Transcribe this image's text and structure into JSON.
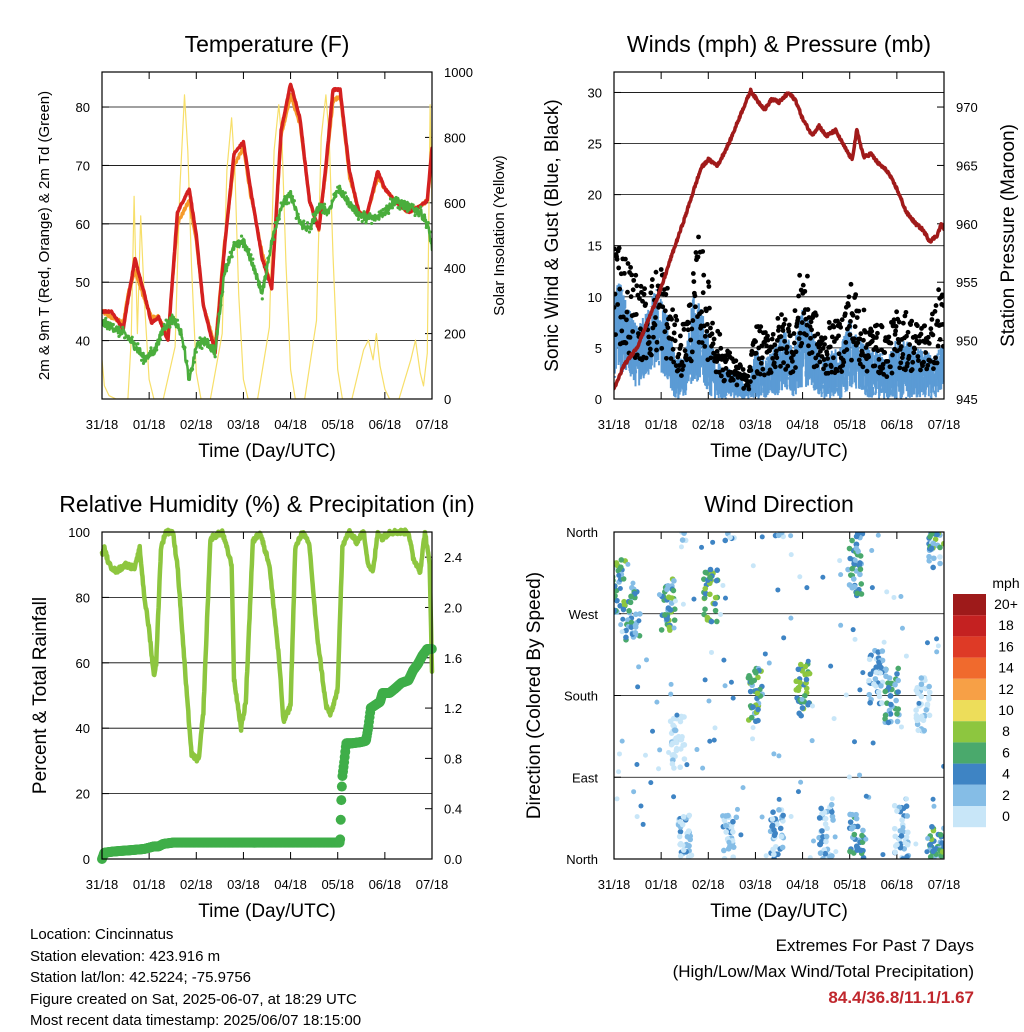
{
  "chart_data": [
    {
      "type": "line",
      "title": "Temperature (F)",
      "xlabel": "Time (Day/UTC)",
      "ylabel": "2m & 9m T (Red, Orange) & 2m Td (Green)",
      "ylabel_right": "Solar Insolation (Yellow)",
      "x_ticks": [
        "31/18",
        "01/18",
        "02/18",
        "03/18",
        "04/18",
        "05/18",
        "06/18",
        "07/18"
      ],
      "xlim": [
        0,
        7
      ],
      "ylim": [
        30,
        86
      ],
      "y_ticks": [
        40,
        50,
        60,
        70,
        80
      ],
      "ylim_right": [
        0,
        1000
      ],
      "y_ticks_right": [
        0,
        200,
        400,
        600,
        800,
        1000
      ],
      "grid": true,
      "colors": {
        "t2m": "#d42020",
        "t9m": "#f59b2b",
        "td": "#4aad3c",
        "solar": "#f7df6a"
      },
      "series": [
        {
          "key": "t2m",
          "x": [
            0,
            0.2,
            0.45,
            0.55,
            0.7,
            0.9,
            1.05,
            1.2,
            1.4,
            1.6,
            1.85,
            2.0,
            2.15,
            2.4,
            2.6,
            2.8,
            3.0,
            3.15,
            3.4,
            3.6,
            3.8,
            4.0,
            4.2,
            4.4,
            4.6,
            4.75,
            4.9,
            5.05,
            5.25,
            5.45,
            5.6,
            5.85,
            6.0,
            6.2,
            6.5,
            6.75,
            6.9,
            7.0
          ],
          "values": [
            45,
            45,
            42,
            47,
            54,
            48,
            43,
            44,
            40,
            62,
            66,
            58,
            46,
            38,
            56,
            72,
            74,
            66,
            54,
            49,
            76,
            84,
            78,
            64,
            59,
            70,
            83,
            83,
            69,
            62,
            61,
            69,
            66,
            64,
            62,
            63,
            64,
            73
          ]
        },
        {
          "key": "t9m",
          "x": [
            0,
            0.2,
            0.45,
            0.55,
            0.7,
            0.9,
            1.05,
            1.2,
            1.4,
            1.6,
            1.85,
            2.0,
            2.15,
            2.4,
            2.6,
            2.8,
            3.0,
            3.15,
            3.4,
            3.6,
            3.8,
            4.0,
            4.2,
            4.4,
            4.6,
            4.75,
            4.9,
            5.05,
            5.25,
            5.45,
            5.6,
            5.85,
            6.0,
            6.2,
            6.5,
            6.75,
            6.9,
            7.0
          ],
          "values": [
            45,
            44,
            43,
            48,
            52,
            47,
            44,
            44,
            41,
            60,
            64,
            57,
            46,
            39,
            57,
            70,
            73,
            65,
            55,
            49,
            75,
            82,
            77,
            64,
            59,
            69,
            81,
            82,
            68,
            62,
            61,
            68,
            66,
            64,
            62,
            63,
            64,
            71
          ]
        },
        {
          "key": "td",
          "x": [
            0,
            0.3,
            0.5,
            0.7,
            0.9,
            1.1,
            1.3,
            1.5,
            1.7,
            1.85,
            2.0,
            2.2,
            2.4,
            2.6,
            2.8,
            3.0,
            3.2,
            3.4,
            3.6,
            3.8,
            4.0,
            4.2,
            4.4,
            4.6,
            4.8,
            5.0,
            5.2,
            5.4,
            5.6,
            5.8,
            6.0,
            6.2,
            6.5,
            6.75,
            6.9,
            7.0
          ],
          "values": [
            43,
            42,
            41,
            39,
            37,
            38,
            42,
            44,
            41,
            33,
            39,
            40,
            38,
            52,
            56,
            57,
            53,
            48,
            57,
            63,
            65,
            60,
            59,
            63,
            62,
            66,
            64,
            62,
            61,
            61,
            62,
            64,
            63,
            62,
            60,
            56
          ]
        },
        {
          "key": "solar",
          "x": [
            0,
            0.05,
            0.15,
            0.3,
            0.55,
            0.62,
            0.68,
            0.75,
            0.82,
            0.9,
            1.0,
            1.1,
            1.3,
            1.55,
            1.65,
            1.75,
            1.82,
            1.9,
            2.0,
            2.1,
            2.3,
            2.55,
            2.65,
            2.75,
            2.82,
            2.9,
            3.0,
            3.1,
            3.3,
            3.55,
            3.65,
            3.75,
            3.82,
            3.9,
            4.0,
            4.1,
            4.3,
            4.55,
            4.65,
            4.75,
            4.82,
            4.9,
            5.0,
            5.1,
            5.3,
            5.55,
            5.65,
            5.75,
            5.82,
            5.9,
            6.0,
            6.1,
            6.3,
            6.55,
            6.65,
            6.75,
            6.82,
            6.9,
            6.96,
            7.0
          ],
          "values": [
            120,
            40,
            10,
            0,
            0,
            180,
            620,
            200,
            560,
            300,
            60,
            0,
            0,
            160,
            640,
            930,
            760,
            400,
            80,
            0,
            0,
            200,
            700,
            860,
            700,
            320,
            60,
            0,
            0,
            220,
            760,
            900,
            780,
            420,
            90,
            0,
            0,
            240,
            800,
            930,
            800,
            440,
            90,
            0,
            0,
            150,
            180,
            120,
            200,
            100,
            30,
            0,
            0,
            120,
            180,
            80,
            40,
            140,
            900,
            600
          ]
        }
      ]
    },
    {
      "type": "scatter",
      "title": "Winds (mph) & Pressure (mb)",
      "xlabel": "Time (Day/UTC)",
      "ylabel": "Sonic Wind & Gust (Blue, Black)",
      "ylabel_right": "Station Pressure (Maroon)",
      "x_ticks": [
        "31/18",
        "01/18",
        "02/18",
        "03/18",
        "04/18",
        "05/18",
        "06/18",
        "07/18"
      ],
      "xlim": [
        0,
        7
      ],
      "ylim": [
        0,
        32
      ],
      "y_ticks": [
        0,
        5,
        10,
        15,
        20,
        25,
        30
      ],
      "ylim_right": [
        945,
        973
      ],
      "y_ticks_right": [
        945,
        950,
        955,
        960,
        965,
        970
      ],
      "grid": true,
      "colors": {
        "wind": "#5b9bd5",
        "gust": "#000000",
        "pressure": "#a01a1a"
      },
      "pressure": {
        "x": [
          0,
          0.2,
          0.5,
          0.8,
          1.0,
          1.2,
          1.5,
          1.7,
          1.85,
          2.0,
          2.2,
          2.45,
          2.7,
          2.9,
          3.05,
          3.2,
          3.35,
          3.5,
          3.7,
          3.85,
          4.0,
          4.2,
          4.35,
          4.5,
          4.7,
          4.9,
          5.05,
          5.15,
          5.3,
          5.45,
          5.6,
          5.8,
          6.0,
          6.2,
          6.4,
          6.55,
          6.7,
          6.85,
          6.95,
          7.0
        ],
        "values": [
          945.8,
          947.8,
          949.5,
          952.5,
          954.5,
          957,
          960.5,
          963,
          964.8,
          965.5,
          965,
          967,
          969.5,
          971.4,
          970.5,
          969.8,
          970.7,
          970.4,
          971.2,
          970.6,
          969,
          967.6,
          968.4,
          967.5,
          968,
          966.5,
          965.5,
          968,
          965.7,
          966,
          965.2,
          964.5,
          963,
          961,
          960,
          959.5,
          958.5,
          959,
          960,
          959.6
        ]
      },
      "wind_envelope": {
        "x": [
          0,
          0.1,
          0.3,
          0.5,
          0.7,
          0.9,
          1.1,
          1.3,
          1.5,
          1.7,
          1.9,
          2.1,
          2.3,
          2.5,
          2.7,
          2.85,
          3.0,
          3.2,
          3.4,
          3.6,
          3.8,
          4.0,
          4.2,
          4.4,
          4.6,
          4.8,
          5.0,
          5.2,
          5.4,
          5.6,
          5.8,
          6.0,
          6.2,
          6.4,
          6.6,
          6.8,
          7.0
        ],
        "high": [
          10,
          12,
          9,
          7,
          9,
          11,
          9,
          4,
          4,
          11,
          8,
          5,
          3,
          3,
          2,
          1,
          5,
          4,
          5,
          7,
          5,
          9,
          7,
          4,
          5,
          5,
          8,
          6,
          5,
          5,
          4,
          6,
          6,
          5,
          5,
          4,
          6
        ],
        "low": [
          1,
          3,
          2,
          1,
          2,
          3,
          2,
          0,
          0,
          2,
          1,
          0,
          0,
          0,
          0,
          0,
          0,
          0,
          0,
          1,
          0,
          1,
          1,
          0,
          0,
          0,
          1,
          1,
          0,
          0,
          0,
          0,
          0,
          0,
          0,
          0,
          1
        ]
      },
      "gust_profile": {
        "x": [
          0,
          0.15,
          0.4,
          0.6,
          0.8,
          1.0,
          1.2,
          1.4,
          1.6,
          1.8,
          1.95,
          2.1,
          2.3,
          2.5,
          2.7,
          2.85,
          3.0,
          3.2,
          3.4,
          3.6,
          3.8,
          4.0,
          4.2,
          4.4,
          4.6,
          4.8,
          5.0,
          5.2,
          5.4,
          5.6,
          5.8,
          6.0,
          6.2,
          6.4,
          6.6,
          6.8,
          7.0
        ],
        "values": [
          17,
          14,
          12,
          10,
          11,
          13,
          9,
          6,
          9,
          15,
          12,
          8,
          5,
          4,
          3,
          2,
          7,
          6,
          7,
          8,
          7,
          13,
          9,
          6,
          7,
          7,
          11,
          9,
          7,
          7,
          6,
          8,
          8,
          7,
          7,
          8,
          13
        ]
      }
    },
    {
      "type": "line",
      "title": "Relative Humidity (%) & Precipitation (in)",
      "xlabel": "Time (Day/UTC)",
      "ylabel": "Percent & Total Rainfall",
      "x_ticks": [
        "31/18",
        "01/18",
        "02/18",
        "03/18",
        "04/18",
        "05/18",
        "06/18",
        "07/18"
      ],
      "xlim": [
        0,
        7
      ],
      "ylim": [
        0,
        100
      ],
      "y_ticks": [
        0,
        20,
        40,
        60,
        80,
        100
      ],
      "ylim_right": [
        0,
        2.6
      ],
      "y_ticks_right": [
        "0.0",
        "0.4",
        "0.8",
        "1.2",
        "1.6",
        "2.0",
        "2.4"
      ],
      "grid": true,
      "colors": {
        "rh": "#8dc63f",
        "precip": "#3fae49"
      },
      "series": [
        {
          "key": "rh",
          "x": [
            0,
            0.05,
            0.15,
            0.3,
            0.5,
            0.7,
            0.8,
            0.9,
            1.0,
            1.1,
            1.15,
            1.25,
            1.35,
            1.5,
            1.6,
            1.8,
            1.9,
            2.05,
            2.15,
            2.3,
            2.55,
            2.75,
            2.8,
            2.95,
            3.05,
            3.2,
            3.35,
            3.55,
            3.75,
            3.85,
            4.0,
            4.1,
            4.25,
            4.4,
            4.55,
            4.75,
            4.85,
            5.0,
            5.1,
            5.25,
            5.4,
            5.55,
            5.65,
            5.75,
            5.85,
            5.95,
            6.1,
            6.3,
            6.5,
            6.6,
            6.75,
            6.85,
            6.95,
            7.0
          ],
          "values": [
            93,
            95,
            90,
            88,
            90,
            89,
            95,
            80,
            70,
            56,
            60,
            95,
            100,
            100,
            90,
            50,
            32,
            30,
            45,
            98,
            100,
            90,
            55,
            40,
            48,
            97,
            100,
            90,
            62,
            42,
            47,
            95,
            100,
            96,
            70,
            47,
            44,
            52,
            96,
            100,
            97,
            100,
            90,
            88,
            100,
            98,
            100,
            100,
            100,
            92,
            88,
            100,
            90,
            58
          ]
        },
        {
          "key": "precip",
          "x": [
            0,
            0.05,
            0.25,
            0.6,
            0.9,
            1.1,
            1.2,
            1.3,
            1.5,
            1.8,
            2.1,
            2.5,
            3.0,
            3.5,
            4.0,
            4.5,
            5.05,
            5.08,
            5.1,
            5.13,
            5.18,
            5.3,
            5.5,
            5.6,
            5.65,
            5.7,
            5.9,
            5.95,
            6.1,
            6.2,
            6.35,
            6.5,
            6.6,
            6.7,
            6.8,
            6.9,
            7.0
          ],
          "values": [
            0,
            0.05,
            0.06,
            0.07,
            0.08,
            0.1,
            0.1,
            0.12,
            0.13,
            0.13,
            0.13,
            0.13,
            0.13,
            0.13,
            0.13,
            0.13,
            0.13,
            0.52,
            0.66,
            0.75,
            0.92,
            0.92,
            0.93,
            0.94,
            1.05,
            1.2,
            1.25,
            1.32,
            1.32,
            1.35,
            1.4,
            1.42,
            1.5,
            1.55,
            1.62,
            1.67,
            1.67
          ]
        }
      ]
    },
    {
      "type": "scatter",
      "title": "Wind Direction",
      "xlabel": "Time (Day/UTC)",
      "ylabel": "Direction (Colored By Speed)",
      "x_ticks": [
        "31/18",
        "01/18",
        "02/18",
        "03/18",
        "04/18",
        "05/18",
        "06/18",
        "07/18"
      ],
      "xlim": [
        0,
        7
      ],
      "ylim": [
        0,
        360
      ],
      "y_ticks": [
        "North",
        "East",
        "South",
        "West",
        "North"
      ],
      "grid": true,
      "colorbar": {
        "title": "mph",
        "labels": [
          "20+",
          "18",
          "16",
          "14",
          "12",
          "10",
          "8",
          "6",
          "4",
          "2",
          "0"
        ],
        "colors": [
          "#9e1a1a",
          "#c42121",
          "#de3a26",
          "#f06a2d",
          "#f7a046",
          "#eddd5a",
          "#8dc63f",
          "#4aa96c",
          "#3e84c4",
          "#85bde6",
          "#c8e6f8"
        ]
      },
      "clusters": [
        {
          "x": 0.1,
          "dir": 300,
          "speed": 6
        },
        {
          "x": 0.4,
          "dir": 270,
          "speed": 5
        },
        {
          "x": 1.15,
          "dir": 280,
          "speed": 6
        },
        {
          "x": 2.05,
          "dir": 290,
          "speed": 7
        },
        {
          "x": 1.35,
          "dir": 130,
          "speed": 1
        },
        {
          "x": 1.5,
          "dir": 20,
          "speed": 2
        },
        {
          "x": 2.45,
          "dir": 20,
          "speed": 2
        },
        {
          "x": 3.0,
          "dir": 180,
          "speed": 6
        },
        {
          "x": 3.45,
          "dir": 25,
          "speed": 3
        },
        {
          "x": 4.0,
          "dir": 185,
          "speed": 7
        },
        {
          "x": 4.5,
          "dir": 30,
          "speed": 3
        },
        {
          "x": 5.1,
          "dir": 320,
          "speed": 5
        },
        {
          "x": 5.15,
          "dir": 20,
          "speed": 5
        },
        {
          "x": 5.55,
          "dir": 200,
          "speed": 3
        },
        {
          "x": 5.9,
          "dir": 180,
          "speed": 5
        },
        {
          "x": 6.1,
          "dir": 30,
          "speed": 3
        },
        {
          "x": 6.55,
          "dir": 170,
          "speed": 1
        },
        {
          "x": 6.8,
          "dir": 350,
          "speed": 4
        },
        {
          "x": 6.85,
          "dir": 10,
          "speed": 6
        }
      ]
    }
  ],
  "info": {
    "location": "Location: Cincinnatus",
    "elevation": "Station elevation: 423.916 m",
    "latlon": "Station lat/lon: 42.5224; -75.9756",
    "created": "Figure created on Sat, 2025-06-07, at 18:29 UTC",
    "recent": "Most recent data timestamp: 2025/06/07 18:15:00"
  },
  "extremes": {
    "title": "Extremes For Past 7 Days",
    "subtitle": "(High/Low/Max Wind/Total Precipitation)",
    "values": "84.4/36.8/11.1/1.67"
  }
}
